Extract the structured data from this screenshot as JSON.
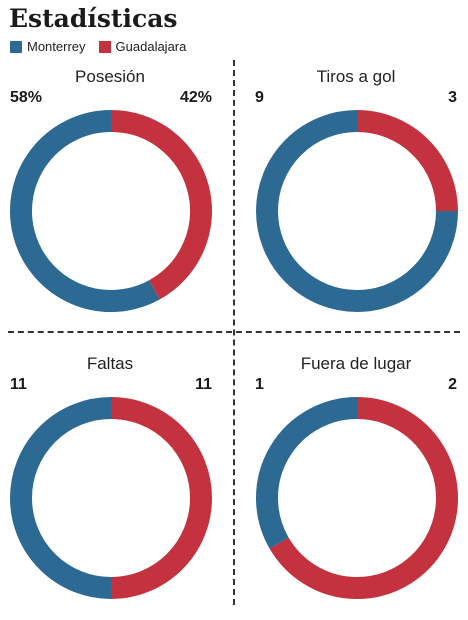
{
  "title": "Estadísticas",
  "colors": {
    "monterrey": "#2c6a93",
    "guadalajara": "#c4323f"
  },
  "legend": [
    {
      "label": "Monterrey",
      "color": "#2c6a93"
    },
    {
      "label": "Guadalajara",
      "color": "#c4323f"
    }
  ],
  "panels": [
    {
      "title": "Posesión",
      "left_label": "58%",
      "right_label": "42%"
    },
    {
      "title": "Tiros a gol",
      "left_label": "9",
      "right_label": "3"
    },
    {
      "title": "Faltas",
      "left_label": "11",
      "right_label": "11"
    },
    {
      "title": "Fuera de lugar",
      "left_label": "1",
      "right_label": "2"
    }
  ],
  "chart_data": [
    {
      "type": "pie",
      "title": "Posesión",
      "categories": [
        "Monterrey",
        "Guadalajara"
      ],
      "values": [
        58,
        42
      ]
    },
    {
      "type": "pie",
      "title": "Tiros a gol",
      "categories": [
        "Monterrey",
        "Guadalajara"
      ],
      "values": [
        9,
        3
      ]
    },
    {
      "type": "pie",
      "title": "Faltas",
      "categories": [
        "Monterrey",
        "Guadalajara"
      ],
      "values": [
        11,
        11
      ]
    },
    {
      "type": "pie",
      "title": "Fuera de lugar",
      "categories": [
        "Monterrey",
        "Guadalajara"
      ],
      "values": [
        1,
        2
      ]
    }
  ]
}
